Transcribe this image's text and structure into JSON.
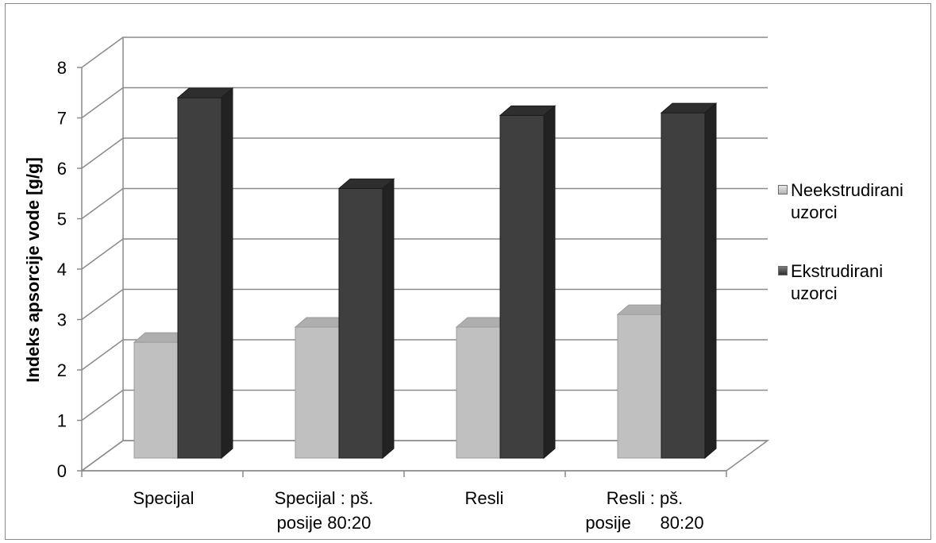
{
  "chart_data": {
    "type": "bar",
    "title": "",
    "xlabel": "",
    "ylabel": "Indeks apsorcije vode [g/g]",
    "ylim": [
      0,
      8
    ],
    "yticks": [
      "0",
      "1",
      "2",
      "3",
      "4",
      "5",
      "6",
      "7",
      "8"
    ],
    "grid": true,
    "legend_position": "right",
    "categories": [
      "Specijal",
      "Specijal : pš.\nposije 80:20",
      "Resli",
      "Resli : pš.\nposije      80:20"
    ],
    "series": [
      {
        "name": "Neekstrudirani uzorci",
        "color": "#c0c0c0",
        "values": [
          2.55,
          2.85,
          2.85,
          3.1
        ]
      },
      {
        "name": "Ekstrudirani uzorci",
        "color": "#3f3f3f",
        "values": [
          7.4,
          5.6,
          7.05,
          7.1
        ]
      }
    ]
  }
}
